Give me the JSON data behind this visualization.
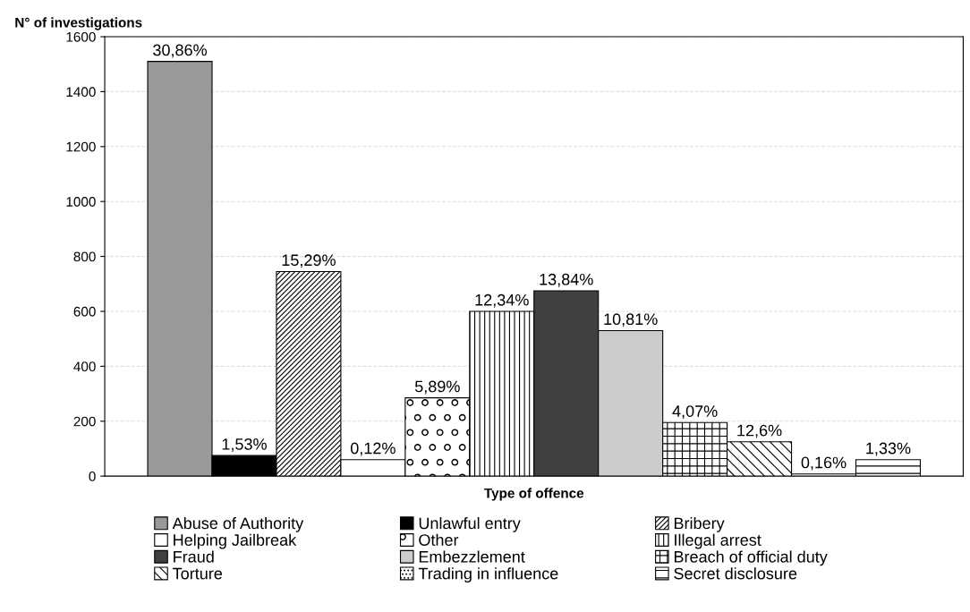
{
  "chart_data": {
    "type": "bar",
    "ylabel": "N° of investigations",
    "xlabel": "Type of offence",
    "categories": [
      null
    ],
    "series": [
      {
        "name": "Abuse of Authority",
        "color": "#999999",
        "values": [
          1510
        ]
      },
      {
        "name": "Unlawful entry",
        "color": "#000000",
        "values": [
          75
        ]
      },
      {
        "name": "Bribery",
        "color": "#000000",
        "values": [
          745
        ]
      },
      {
        "name": "Helping Jailbreak",
        "color": "#ffffff",
        "values": [
          60
        ]
      },
      {
        "name": "Other",
        "color": "#000000",
        "values": [
          285
        ]
      },
      {
        "name": "Illegal arrest",
        "color": "#000000",
        "values": [
          600
        ]
      },
      {
        "name": "Fraud",
        "color": "#404040",
        "values": [
          675
        ]
      },
      {
        "name": "Embezzlement",
        "color": "#cccccc",
        "values": [
          530
        ]
      },
      {
        "name": "Breach of official duty",
        "color": "#000000",
        "values": [
          195
        ]
      },
      {
        "name": "Torture",
        "color": "#000000",
        "values": [
          125
        ]
      },
      {
        "name": "Trading in influence",
        "color": "#000000",
        "values": [
          8
        ]
      },
      {
        "name": "Secret disclosure",
        "color": "#000000",
        "values": [
          60
        ]
      }
    ],
    "value_labels": [
      "30,86%",
      "1,53%",
      "15,29%",
      "0,12%",
      "5,89%",
      "12,34%",
      "13,84%",
      "10,81%",
      "4,07%",
      "12,6%",
      "0,16%",
      "1,33%"
    ],
    "ylim": [
      0,
      1600
    ],
    "yticks": [
      0,
      200,
      400,
      600,
      800,
      1000,
      1200,
      1400,
      1600
    ],
    "grid": "y",
    "legend": "bottom"
  }
}
